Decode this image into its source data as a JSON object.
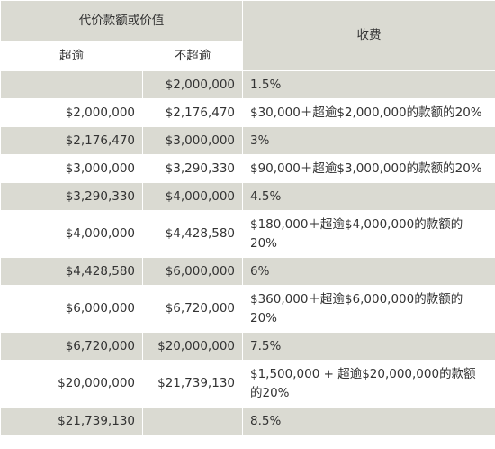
{
  "table": {
    "header": {
      "amount_group": "代价款额或价值",
      "fee": "收费",
      "over": "超逾",
      "not_over": "不超逾"
    },
    "rows": [
      {
        "over": "",
        "not_over": "$2,000,000",
        "fee": "1.5%"
      },
      {
        "over": "$2,000,000",
        "not_over": "$2,176,470",
        "fee": "$30,000＋超逾$2,000,000的款额的20%"
      },
      {
        "over": "$2,176,470",
        "not_over": "$3,000,000",
        "fee": "3%"
      },
      {
        "over": "$3,000,000",
        "not_over": "$3,290,330",
        "fee": "$90,000＋超逾$3,000,000的款额的20%"
      },
      {
        "over": "$3,290,330",
        "not_over": "$4,000,000",
        "fee": "4.5%"
      },
      {
        "over": "$4,000,000",
        "not_over": "$4,428,580",
        "fee": "$180,000＋超逾$4,000,000的款额的20%"
      },
      {
        "over": "$4,428,580",
        "not_over": "$6,000,000",
        "fee": "6%"
      },
      {
        "over": "$6,000,000",
        "not_over": "$6,720,000",
        "fee": "$360,000＋超逾$6,000,000的款额的20%"
      },
      {
        "over": "$6,720,000",
        "not_over": "$20,000,000",
        "fee": "7.5%"
      },
      {
        "over": "$20,000,000",
        "not_over": "$21,739,130",
        "fee": "$1,500,000 + 超逾$20,000,000的款额的20%"
      },
      {
        "over": "$21,739,130",
        "not_over": "",
        "fee": "8.5%"
      }
    ]
  }
}
